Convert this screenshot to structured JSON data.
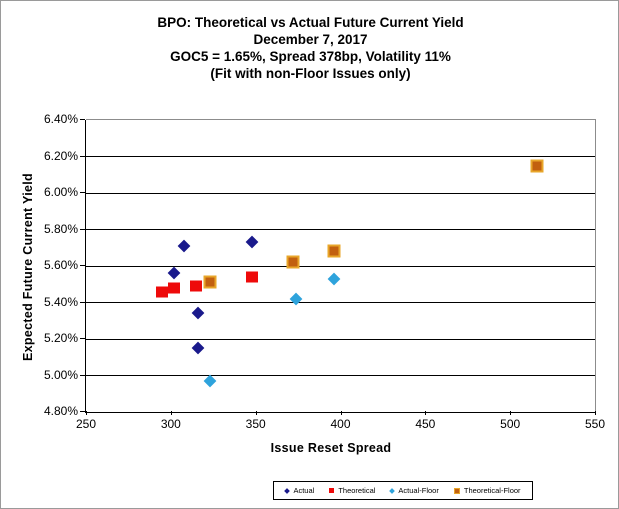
{
  "title_lines": [
    "BPO: Theoretical vs Actual Future Current Yield",
    "December 7, 2017",
    "GOC5 = 1.65%, Spread 378bp, Volatility 11%",
    "(Fit with non-Floor Issues only)"
  ],
  "chart_data": {
    "type": "scatter",
    "xlabel": "Issue Reset Spread",
    "ylabel": "Expected Future Current Yield",
    "xlim": [
      250,
      550
    ],
    "ylim": [
      4.8,
      6.4
    ],
    "grid": true,
    "legend_position": "bottom",
    "x_ticks": [
      {
        "value": 250,
        "label": "250"
      },
      {
        "value": 300,
        "label": "300"
      },
      {
        "value": 350,
        "label": "350"
      },
      {
        "value": 400,
        "label": "400"
      },
      {
        "value": 450,
        "label": "450"
      },
      {
        "value": 500,
        "label": "500"
      },
      {
        "value": 550,
        "label": "550"
      }
    ],
    "y_ticks": [
      {
        "value": 6.4,
        "label": "6.40%"
      },
      {
        "value": 6.2,
        "label": "6.20%"
      },
      {
        "value": 6.0,
        "label": "6.00%"
      },
      {
        "value": 5.8,
        "label": "5.80%"
      },
      {
        "value": 5.6,
        "label": "5.60%"
      },
      {
        "value": 5.4,
        "label": "5.40%"
      },
      {
        "value": 5.2,
        "label": "5.20%"
      },
      {
        "value": 5.0,
        "label": "5.00%"
      },
      {
        "value": 4.8,
        "label": "4.80%"
      }
    ],
    "series": [
      {
        "name": "Actual",
        "marker": "diamond",
        "color": "#1A1A8C",
        "points": [
          [
            302,
            5.56
          ],
          [
            308,
            5.71
          ],
          [
            316,
            5.34
          ],
          [
            316,
            5.15
          ],
          [
            348,
            5.73
          ]
        ]
      },
      {
        "name": "Theoretical",
        "marker": "square",
        "color": "#EE0A0A",
        "points": [
          [
            295,
            5.46
          ],
          [
            302,
            5.48
          ],
          [
            315,
            5.49
          ],
          [
            348,
            5.54
          ]
        ]
      },
      {
        "name": "Actual-Floor",
        "marker": "diamond",
        "color": "#2EA3DC",
        "points": [
          [
            323,
            4.97
          ],
          [
            374,
            5.42
          ],
          [
            396,
            5.53
          ]
        ]
      },
      {
        "name": "Theoretical-Floor",
        "marker": "square",
        "color": "#C2600F",
        "border_color": "#E8A62A",
        "points": [
          [
            323,
            5.51
          ],
          [
            372,
            5.62
          ],
          [
            396,
            5.68
          ],
          [
            516,
            6.15
          ]
        ]
      }
    ]
  }
}
